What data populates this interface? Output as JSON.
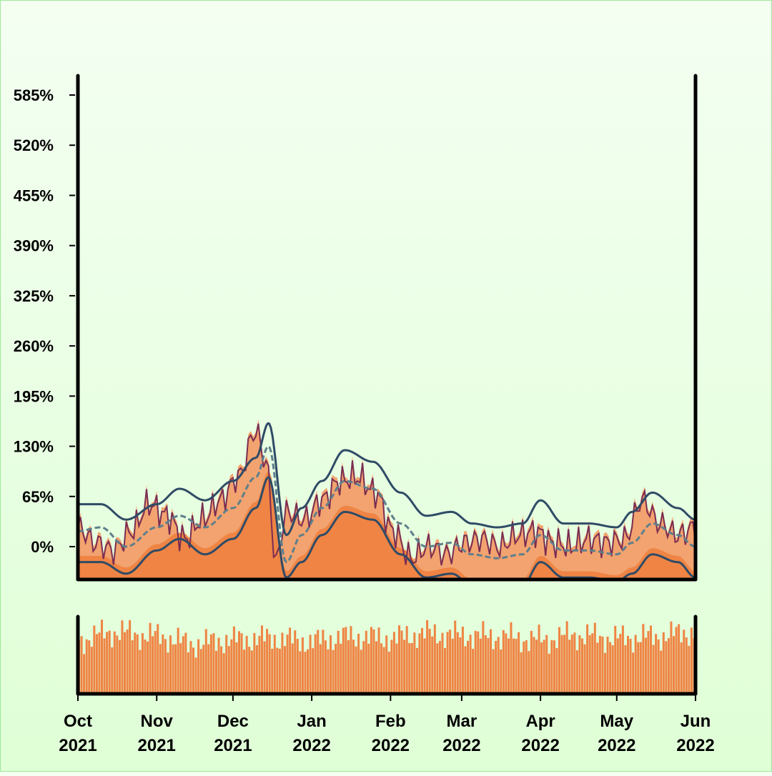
{
  "chart_data": {
    "type": "line",
    "title": "",
    "xlabel": "",
    "ylabel": "",
    "x_range": [
      "2021-10-01",
      "2022-06-01"
    ],
    "ylim": [
      -40,
      610
    ],
    "yticks": [
      0,
      65,
      130,
      195,
      260,
      325,
      390,
      455,
      520,
      585
    ],
    "ytick_labels": [
      "0%",
      "65%",
      "130%",
      "195%",
      "260%",
      "325%",
      "390%",
      "455%",
      "520%",
      "585%"
    ],
    "xticks": [
      "2021-10-01",
      "2021-11-01",
      "2021-12-01",
      "2022-01-01",
      "2022-02-01",
      "2022-03-01",
      "2022-04-01",
      "2022-05-01",
      "2022-06-01"
    ],
    "xtick_labels": [
      [
        "Oct",
        "2021"
      ],
      [
        "Nov",
        "2021"
      ],
      [
        "Dec",
        "2021"
      ],
      [
        "Jan",
        "2022"
      ],
      [
        "Feb",
        "2022"
      ],
      [
        "Mar",
        "2022"
      ],
      [
        "Apr",
        "2022"
      ],
      [
        "May",
        "2022"
      ],
      [
        "Jun",
        "2022"
      ]
    ],
    "grid": false,
    "legend": "none",
    "colors": {
      "area": "#ef8444",
      "band": "#f2a36f",
      "daily_line": "#7b2d52",
      "envelope": "#2f4b66",
      "moving_average": "#5e7f8c",
      "volume": "#ef8444",
      "axis": "#000000"
    },
    "series": [
      {
        "role": "daily-value",
        "dates": [
          "2021-10-01",
          "2021-10-08",
          "2021-10-15",
          "2021-10-22",
          "2021-10-29",
          "2021-11-05",
          "2021-11-12",
          "2021-11-19",
          "2021-11-26",
          "2021-12-03",
          "2021-12-10",
          "2021-12-14",
          "2021-12-18",
          "2021-12-22",
          "2021-12-29",
          "2022-01-05",
          "2022-01-12",
          "2022-01-19",
          "2022-01-26",
          "2022-02-02",
          "2022-02-09",
          "2022-02-16",
          "2022-02-23",
          "2022-03-02",
          "2022-03-09",
          "2022-03-16",
          "2022-03-23",
          "2022-03-30",
          "2022-04-06",
          "2022-04-13",
          "2022-04-20",
          "2022-04-27",
          "2022-05-04",
          "2022-05-11",
          "2022-05-18",
          "2022-05-25",
          "2022-06-01"
        ],
        "values": [
          25,
          5,
          -5,
          20,
          55,
          40,
          10,
          35,
          60,
          90,
          150,
          110,
          -20,
          45,
          35,
          60,
          85,
          90,
          70,
          20,
          -15,
          0,
          -10,
          5,
          10,
          0,
          15,
          20,
          5,
          0,
          10,
          5,
          10,
          60,
          30,
          15,
          25
        ]
      },
      {
        "role": "upper-envelope",
        "dates": [
          "2021-10-01",
          "2021-10-10",
          "2021-10-20",
          "2021-11-01",
          "2021-11-10",
          "2021-11-20",
          "2021-12-01",
          "2021-12-10",
          "2021-12-15",
          "2021-12-22",
          "2021-12-28",
          "2022-01-05",
          "2022-01-14",
          "2022-01-25",
          "2022-02-05",
          "2022-02-15",
          "2022-02-25",
          "2022-03-05",
          "2022-03-15",
          "2022-03-25",
          "2022-04-01",
          "2022-04-10",
          "2022-04-20",
          "2022-05-01",
          "2022-05-07",
          "2022-05-15",
          "2022-05-25",
          "2022-06-01"
        ],
        "values": [
          55,
          55,
          35,
          55,
          75,
          60,
          85,
          115,
          160,
          15,
          50,
          85,
          125,
          110,
          70,
          40,
          45,
          30,
          25,
          30,
          60,
          30,
          30,
          25,
          45,
          70,
          50,
          35
        ]
      },
      {
        "role": "moving-average",
        "dates": [
          "2021-10-01",
          "2021-10-10",
          "2021-10-20",
          "2021-11-01",
          "2021-11-10",
          "2021-11-20",
          "2021-12-01",
          "2021-12-10",
          "2021-12-15",
          "2021-12-22",
          "2021-12-28",
          "2022-01-05",
          "2022-01-14",
          "2022-01-25",
          "2022-02-05",
          "2022-02-15",
          "2022-02-25",
          "2022-03-05",
          "2022-03-15",
          "2022-03-25",
          "2022-04-01",
          "2022-04-10",
          "2022-04-20",
          "2022-05-01",
          "2022-05-07",
          "2022-05-15",
          "2022-05-25",
          "2022-06-01"
        ],
        "values": [
          20,
          25,
          0,
          25,
          40,
          25,
          50,
          90,
          130,
          -20,
          15,
          50,
          85,
          75,
          30,
          0,
          5,
          -10,
          -15,
          -10,
          15,
          -5,
          -5,
          -10,
          5,
          30,
          15,
          0
        ]
      },
      {
        "role": "lower-envelope",
        "dates": [
          "2021-10-01",
          "2021-10-10",
          "2021-10-20",
          "2021-11-01",
          "2021-11-10",
          "2021-11-20",
          "2021-12-01",
          "2021-12-10",
          "2021-12-15",
          "2021-12-22",
          "2021-12-28",
          "2022-01-05",
          "2022-01-14",
          "2022-01-25",
          "2022-02-05",
          "2022-02-15",
          "2022-02-25",
          "2022-03-05",
          "2022-03-15",
          "2022-03-25",
          "2022-04-01",
          "2022-04-10",
          "2022-04-20",
          "2022-05-01",
          "2022-05-07",
          "2022-05-15",
          "2022-05-25",
          "2022-06-01"
        ],
        "values": [
          -20,
          -20,
          -35,
          -5,
          10,
          -10,
          10,
          50,
          90,
          -40,
          -20,
          15,
          45,
          35,
          -10,
          -40,
          -35,
          -50,
          -55,
          -50,
          -20,
          -40,
          -40,
          -45,
          -35,
          -10,
          -20,
          -40
        ]
      }
    ],
    "volume_panel": {
      "type": "bar",
      "note_levels": "relative height 0-1",
      "dates": [
        "2021-10-01",
        "2021-10-15",
        "2021-11-01",
        "2021-11-15",
        "2021-12-01",
        "2021-12-15",
        "2022-01-01",
        "2022-01-15",
        "2022-02-01",
        "2022-02-15",
        "2022-03-01",
        "2022-03-15",
        "2022-04-01",
        "2022-04-15",
        "2022-05-01",
        "2022-05-15",
        "2022-06-01"
      ],
      "values": [
        0.7,
        0.8,
        0.75,
        0.65,
        0.7,
        0.72,
        0.68,
        0.74,
        0.72,
        0.78,
        0.76,
        0.74,
        0.7,
        0.76,
        0.72,
        0.74,
        0.8
      ]
    }
  }
}
